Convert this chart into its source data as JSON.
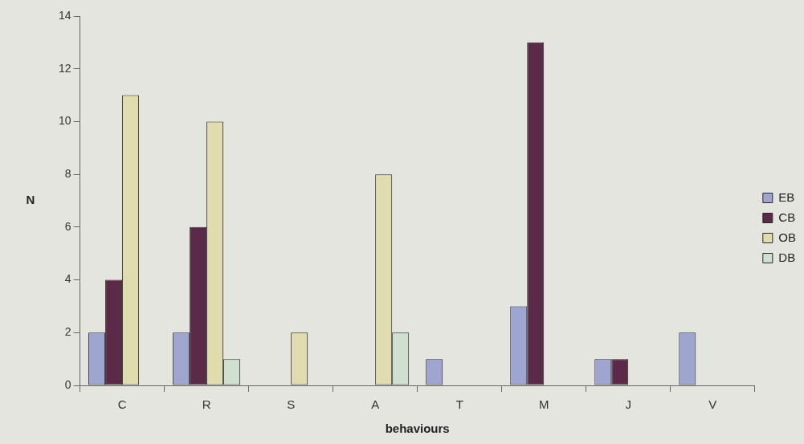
{
  "chart_data": {
    "type": "bar",
    "xlabel": "behaviours",
    "ylabel": "N",
    "categories": [
      "C",
      "R",
      "S",
      "A",
      "T",
      "M",
      "J",
      "V"
    ],
    "series": [
      {
        "name": "EB",
        "color": "#9ea6d0",
        "values": [
          2,
          2,
          null,
          null,
          1,
          3,
          1,
          2
        ]
      },
      {
        "name": "CB",
        "color": "#5a2a48",
        "values": [
          4,
          6,
          null,
          null,
          null,
          13,
          1,
          null
        ]
      },
      {
        "name": "OB",
        "color": "#e0dcb0",
        "values": [
          11,
          10,
          2,
          8,
          null,
          null,
          null,
          null
        ]
      },
      {
        "name": "DB",
        "color": "#cfe0d0",
        "values": [
          null,
          1,
          null,
          2,
          null,
          null,
          null,
          null
        ]
      }
    ],
    "ylim": [
      0,
      14
    ],
    "yticks": [
      0,
      2,
      4,
      6,
      8,
      10,
      12,
      14
    ],
    "grid": false,
    "legend": "right"
  }
}
